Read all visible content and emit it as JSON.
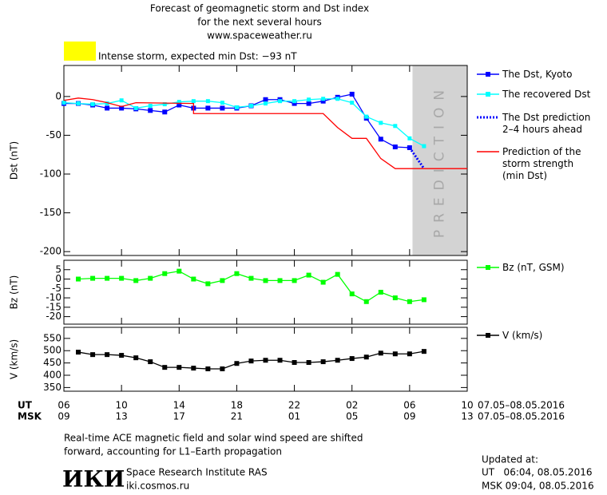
{
  "header": {
    "title_lines": [
      "Forecast of geomagnetic storm and Dst index",
      "for the next several hours",
      "www.spaceweather.ru"
    ],
    "storm_text": "Intense storm, expected min Dst: −93 nT",
    "storm_color": "#ffff00"
  },
  "chart_data": [
    {
      "type": "line",
      "ylabel": "Dst (nT)",
      "ylim": [
        -205,
        40
      ],
      "yticks": [
        0,
        -50,
        -100,
        -150,
        -200
      ],
      "shade": {
        "from": 24.2,
        "to": 28,
        "label": "PREDICTION"
      },
      "series": [
        {
          "name": "The Dst, Kyoto",
          "color": "#0000ff",
          "marker": "square",
          "style": "solid",
          "x": [
            0,
            1,
            2,
            3,
            4,
            5,
            6,
            7,
            8,
            9,
            10,
            11,
            12,
            13,
            14,
            15,
            16,
            17,
            18,
            19,
            20,
            21,
            22,
            23,
            24
          ],
          "values": [
            -9,
            -9,
            -11,
            -15,
            -15,
            -16,
            -18,
            -20,
            -11,
            -15,
            -15,
            -15,
            -15,
            -12,
            -4,
            -4,
            -9,
            -9,
            -6,
            -1,
            3,
            -28,
            -55,
            -65,
            -66
          ]
        },
        {
          "name": "The recovered Dst",
          "color": "#00ffff",
          "marker": "square",
          "style": "solid",
          "x": [
            0,
            1,
            2,
            3,
            4,
            5,
            6,
            7,
            8,
            9,
            10,
            11,
            12,
            13,
            14,
            15,
            16,
            17,
            18,
            19,
            20,
            21,
            22,
            23,
            24,
            25
          ],
          "values": [
            -8,
            -9,
            -10,
            -9,
            -5,
            -15,
            -12,
            -10,
            -7,
            -6,
            -6,
            -8,
            -14,
            -12,
            -9,
            -6,
            -6,
            -4,
            -3,
            -3,
            -8,
            -26,
            -34,
            -38,
            -54,
            -64
          ]
        },
        {
          "name": "The Dst prediction\n2–4 hours ahead",
          "color": "#0000ff",
          "marker": "none",
          "style": "dotted",
          "x": [
            24,
            25
          ],
          "values": [
            -66,
            -93
          ]
        },
        {
          "name": "Prediction of the\nstorm strength\n(min Dst)",
          "color": "#ff0000",
          "marker": "none",
          "style": "solid",
          "x": [
            0,
            1,
            2,
            3,
            4,
            5,
            9,
            9,
            18,
            19,
            20,
            21,
            22,
            23,
            28
          ],
          "values": [
            -5,
            -2,
            -4,
            -8,
            -13,
            -8,
            -9,
            -22,
            -22,
            -40,
            -54,
            -54,
            -80,
            -93,
            -93
          ]
        }
      ]
    },
    {
      "type": "line",
      "ylabel": "Bz (nT)",
      "ylim": [
        -24,
        10
      ],
      "yticks": [
        5,
        0,
        -5,
        -10,
        -15,
        -20
      ],
      "series": [
        {
          "name": "Bz (nT, GSM)",
          "color": "#00ff00",
          "marker": "square",
          "style": "solid",
          "x": [
            1,
            2,
            3,
            4,
            5,
            6,
            7,
            8,
            9,
            10,
            11,
            12,
            13,
            14,
            15,
            16,
            17,
            18,
            19,
            20,
            21,
            22,
            23,
            24,
            25
          ],
          "values": [
            0,
            0.4,
            0.4,
            0.4,
            -0.8,
            0.4,
            2.9,
            4.2,
            0,
            -2.5,
            -0.8,
            2.9,
            0.4,
            -0.8,
            -0.8,
            -0.8,
            2.1,
            -1.7,
            2.5,
            -7.9,
            -12,
            -7,
            -10,
            -12,
            -11
          ]
        }
      ]
    },
    {
      "type": "line",
      "ylabel": "V (km/s)",
      "ylim": [
        335,
        595
      ],
      "yticks": [
        550,
        500,
        450,
        400,
        350
      ],
      "series": [
        {
          "name": "V (km/s)",
          "color": "#000000",
          "marker": "square",
          "style": "solid",
          "x": [
            1,
            2,
            3,
            4,
            5,
            6,
            7,
            8,
            9,
            10,
            11,
            12,
            13,
            14,
            15,
            16,
            17,
            18,
            19,
            20,
            21,
            22,
            23,
            24,
            25
          ],
          "values": [
            494,
            484,
            484,
            481,
            471,
            455,
            432,
            432,
            429,
            426,
            426,
            448,
            458,
            461,
            461,
            452,
            452,
            455,
            461,
            468,
            474,
            490,
            487,
            487,
            497
          ]
        }
      ]
    }
  ],
  "x_axis": {
    "xlim": [
      0,
      28
    ],
    "ut_label": "UT",
    "ut_dates": "07.05–08.05.2016",
    "ut_ticks": [
      {
        "value": 0,
        "label": "06"
      },
      {
        "value": 4,
        "label": "10"
      },
      {
        "value": 8,
        "label": "14"
      },
      {
        "value": 12,
        "label": "18"
      },
      {
        "value": 16,
        "label": "22"
      },
      {
        "value": 20,
        "label": "02"
      },
      {
        "value": 24,
        "label": "06"
      },
      {
        "value": 28,
        "label": "10"
      }
    ],
    "msk_label": "MSK",
    "msk_dates": "07.05–08.05.2016",
    "msk_ticks": [
      {
        "value": 0,
        "label": "09"
      },
      {
        "value": 4,
        "label": "13"
      },
      {
        "value": 8,
        "label": "17"
      },
      {
        "value": 12,
        "label": "21"
      },
      {
        "value": 16,
        "label": "01"
      },
      {
        "value": 20,
        "label": "05"
      },
      {
        "value": 24,
        "label": "09"
      },
      {
        "value": 28,
        "label": "13"
      }
    ]
  },
  "footer": {
    "note_lines": [
      "Real-time ACE magnetic field and solar wind speed are shifted",
      "forward, accounting for L1–Earth propagation"
    ],
    "logo": "ИКИ",
    "institute": "Space Research Institute RAS",
    "site": "iki.cosmos.ru",
    "updated_title": "Updated at:",
    "updated_ut": "UT   06:04, 08.05.2016",
    "updated_msk": "MSK 09:04, 08.05.2016"
  }
}
